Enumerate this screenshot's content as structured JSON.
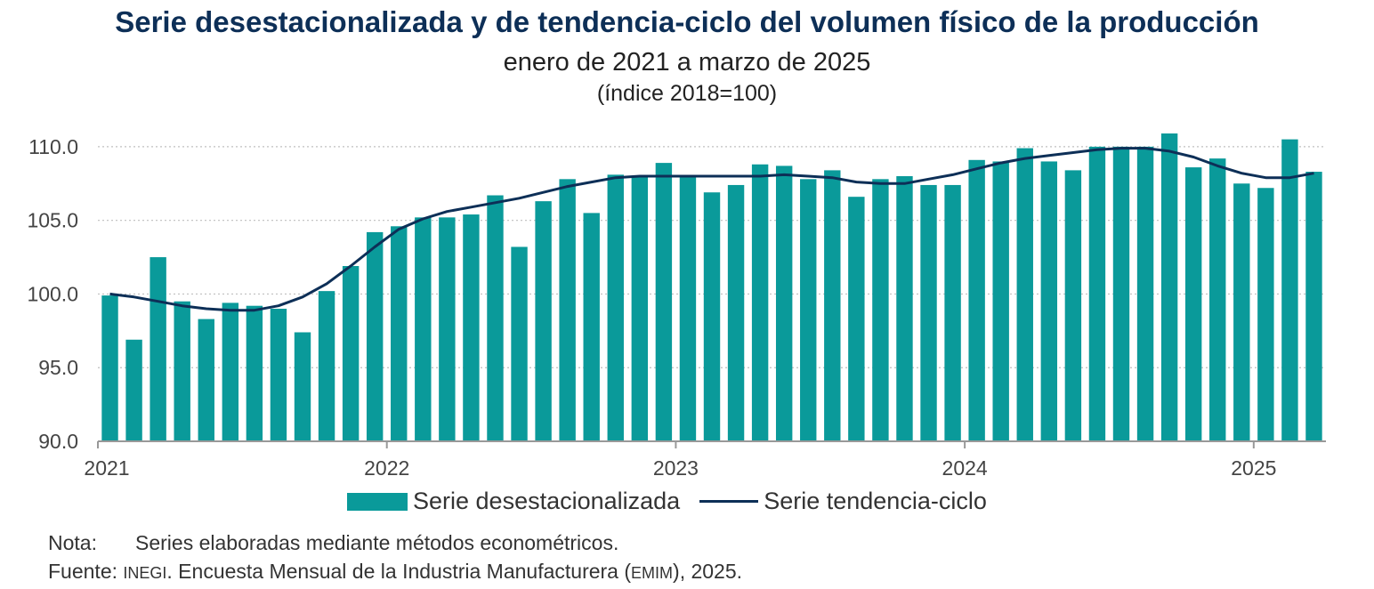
{
  "header": {
    "title": "Serie desestacionalizada y de tendencia-ciclo del volumen físico de la producción",
    "subtitle": "enero de 2021 a marzo de 2025",
    "units": "(índice 2018=100)"
  },
  "chart_data": {
    "type": "bar+line",
    "title": "Serie desestacionalizada y de tendencia-ciclo del volumen físico de la producción",
    "subtitle": "enero de 2021 a marzo de 2025",
    "ylabel": "(índice 2018=100)",
    "ylim": [
      90,
      110.9
    ],
    "yticks": [
      "90.0",
      "95.0",
      "100.0",
      "105.0",
      "110.0"
    ],
    "ytick_values": [
      90,
      95,
      100,
      105,
      110
    ],
    "xtick_labels": [
      "2021",
      "2022",
      "2023",
      "2024",
      "2025"
    ],
    "xtick_index": [
      0,
      12,
      24,
      36,
      48
    ],
    "grid": true,
    "colors": {
      "bars": "#0a9a9a",
      "line": "#0d2f57",
      "grid": "#bfbfbf",
      "axis": "#999999"
    },
    "series": [
      {
        "name": "Serie desestacionalizada",
        "type": "bar",
        "values": [
          99.9,
          96.9,
          102.5,
          99.5,
          98.3,
          99.4,
          99.2,
          99.0,
          97.4,
          100.2,
          101.9,
          104.2,
          104.6,
          105.2,
          105.2,
          105.4,
          106.7,
          103.2,
          106.3,
          107.8,
          105.5,
          108.1,
          108.0,
          108.9,
          108.0,
          106.9,
          107.4,
          108.8,
          108.7,
          107.8,
          108.4,
          106.6,
          107.8,
          108.0,
          107.4,
          107.4,
          109.1,
          109.0,
          109.9,
          109.0,
          108.4,
          110.0,
          110.0,
          110.0,
          110.9,
          108.6,
          109.2,
          107.5,
          107.2,
          110.5,
          108.3
        ]
      },
      {
        "name": "Serie tendencia-ciclo",
        "type": "line",
        "values": [
          100.0,
          99.8,
          99.5,
          99.2,
          99.0,
          98.9,
          98.9,
          99.2,
          99.8,
          100.7,
          101.9,
          103.2,
          104.4,
          105.1,
          105.6,
          105.9,
          106.2,
          106.5,
          106.9,
          107.3,
          107.6,
          107.9,
          108.0,
          108.0,
          108.0,
          108.0,
          108.0,
          108.0,
          108.1,
          108.0,
          107.9,
          107.6,
          107.5,
          107.5,
          107.8,
          108.1,
          108.5,
          108.9,
          109.2,
          109.4,
          109.6,
          109.8,
          109.9,
          109.9,
          109.7,
          109.3,
          108.7,
          108.2,
          107.9,
          107.9,
          108.2
        ]
      }
    ]
  },
  "legend": {
    "bars_label": "Serie desestacionalizada",
    "line_label": "Serie tendencia-ciclo"
  },
  "notes": {
    "nota_label": "Nota:",
    "nota_text": "Series elaboradas mediante métodos econométricos.",
    "fuente_label": "Fuente:",
    "fuente_org": "INEGI",
    "fuente_mid": ". Encuesta Mensual de la Industria Manufacturera (",
    "fuente_abbr": "EMIM",
    "fuente_end": "), 2025."
  }
}
